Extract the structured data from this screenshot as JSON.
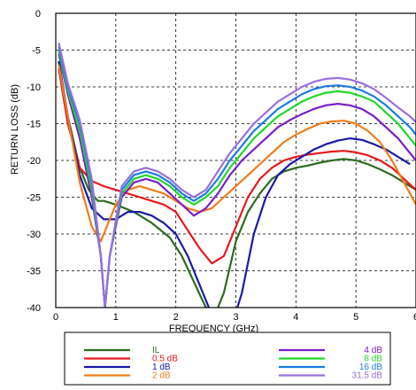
{
  "chart_data": {
    "type": "line",
    "title": "",
    "xlabel": "FREQUENCY (GHz)",
    "ylabel": "RETURN LOSS (dB)",
    "xlim": [
      0,
      6
    ],
    "ylim": [
      -40,
      0
    ],
    "xticks": [
      0,
      1,
      2,
      3,
      4,
      5,
      6
    ],
    "yticks": [
      0,
      -5,
      -10,
      -15,
      -20,
      -25,
      -30,
      -35,
      -40
    ],
    "xtick_labels": [
      "0",
      "1",
      "2",
      "3",
      "4",
      "5",
      "6"
    ],
    "ytick_labels": [
      "0",
      "-5",
      "-10",
      "-15",
      "-20",
      "-25",
      "-30",
      "-35",
      "-40"
    ],
    "grid": true,
    "grid_style": "dashed",
    "legend_position": "below plot",
    "series": [
      {
        "name": "IL",
        "color": "#2e6b1e",
        "x": [
          0.05,
          0.2,
          0.4,
          0.55,
          0.7,
          0.8,
          1.0,
          1.3,
          1.6,
          1.9,
          2.1,
          2.3,
          2.5,
          2.6,
          2.8,
          3.0,
          3.2,
          3.4,
          3.6,
          3.8,
          4.0,
          4.2,
          4.4,
          4.6,
          4.8,
          5.0,
          5.2,
          5.4,
          5.6,
          5.8,
          6.0
        ],
        "y": [
          -6.5,
          -14,
          -21,
          -24,
          -25.5,
          -25.5,
          -26,
          -27,
          -28.5,
          -30.5,
          -33,
          -36.5,
          -40,
          -42,
          -38,
          -31,
          -27,
          -24.5,
          -22.5,
          -21.5,
          -21,
          -20.7,
          -20.3,
          -20,
          -19.8,
          -20,
          -20.5,
          -21.2,
          -22,
          -23,
          -24
        ]
      },
      {
        "name": "0.5 dB",
        "color": "#e8191d",
        "x": [
          0.05,
          0.2,
          0.4,
          0.6,
          0.8,
          1.0,
          1.2,
          1.4,
          1.6,
          1.8,
          2.0,
          2.2,
          2.4,
          2.6,
          2.8,
          3.0,
          3.2,
          3.4,
          3.6,
          3.8,
          4.0,
          4.2,
          4.4,
          4.6,
          4.8,
          5.0,
          5.2,
          5.4,
          5.6,
          5.8,
          6.0
        ],
        "y": [
          -7.5,
          -15,
          -21,
          -22.8,
          -23.5,
          -24,
          -24.5,
          -25,
          -25.5,
          -26,
          -27,
          -29.5,
          -32,
          -34,
          -33,
          -29,
          -25,
          -22.5,
          -21,
          -20,
          -19.5,
          -19.2,
          -19,
          -18.8,
          -18.7,
          -18.9,
          -19.3,
          -20,
          -21,
          -22.5,
          -24
        ]
      },
      {
        "name": "1 dB",
        "color": "#1a1aa8",
        "x": [
          0.05,
          0.2,
          0.4,
          0.6,
          0.8,
          1.0,
          1.2,
          1.4,
          1.6,
          1.8,
          2.0,
          2.2,
          2.4,
          2.6,
          2.8,
          2.95,
          3.1,
          3.3,
          3.5,
          3.7,
          3.9,
          4.1,
          4.3,
          4.5,
          4.7,
          4.9,
          5.1,
          5.3,
          5.5,
          5.7,
          5.9
        ],
        "y": [
          -6.5,
          -14,
          -22,
          -26.5,
          -28,
          -28,
          -27,
          -27,
          -27.5,
          -28.5,
          -30,
          -33,
          -37,
          -41,
          -43,
          -42,
          -38,
          -30,
          -25,
          -22,
          -20.5,
          -19.5,
          -18.5,
          -17.8,
          -17.3,
          -17,
          -17.2,
          -17.8,
          -18.5,
          -19.5,
          -20.5
        ]
      },
      {
        "name": "2 dB",
        "color": "#f07d1a",
        "x": [
          0.05,
          0.2,
          0.4,
          0.6,
          0.75,
          0.85,
          1.0,
          1.2,
          1.4,
          1.6,
          1.8,
          2.0,
          2.2,
          2.4,
          2.6,
          2.8,
          3.0,
          3.2,
          3.4,
          3.6,
          3.8,
          4.0,
          4.2,
          4.4,
          4.6,
          4.8,
          5.0,
          5.2,
          5.4,
          5.6,
          5.8,
          6.0
        ],
        "y": [
          -7,
          -14,
          -23,
          -29,
          -31,
          -29,
          -26,
          -24,
          -23.5,
          -24,
          -24.5,
          -25.5,
          -26.5,
          -27,
          -26.5,
          -25,
          -23.5,
          -22,
          -20.5,
          -19,
          -17.5,
          -16.5,
          -15.7,
          -15,
          -14.7,
          -14.6,
          -15,
          -16,
          -17.5,
          -20,
          -23,
          -26
        ]
      },
      {
        "name": "4 dB",
        "color": "#7a1fc8",
        "x": [
          0.05,
          0.2,
          0.4,
          0.6,
          0.75,
          0.82,
          0.9,
          1.1,
          1.3,
          1.5,
          1.7,
          1.9,
          2.1,
          2.3,
          2.5,
          2.7,
          2.9,
          3.1,
          3.3,
          3.5,
          3.7,
          3.9,
          4.1,
          4.3,
          4.5,
          4.7,
          4.9,
          5.1,
          5.3,
          5.5,
          5.7,
          5.9,
          6.0
        ],
        "y": [
          -5.5,
          -11,
          -17,
          -25,
          -33,
          -40,
          -33,
          -25,
          -23,
          -22.5,
          -23,
          -24.5,
          -26,
          -27.5,
          -26.5,
          -24.5,
          -22,
          -20,
          -18.5,
          -17,
          -15.5,
          -14.5,
          -13.7,
          -13,
          -12.5,
          -12.3,
          -12.5,
          -13,
          -14,
          -15.5,
          -17,
          -19,
          -20
        ]
      },
      {
        "name": "8 dB",
        "color": "#22d62b",
        "x": [
          0.05,
          0.2,
          0.4,
          0.6,
          0.75,
          0.82,
          0.9,
          1.1,
          1.3,
          1.5,
          1.7,
          1.9,
          2.1,
          2.3,
          2.5,
          2.7,
          2.9,
          3.1,
          3.3,
          3.5,
          3.7,
          3.9,
          4.1,
          4.3,
          4.5,
          4.7,
          4.9,
          5.1,
          5.3,
          5.5,
          5.7,
          5.9,
          6.0
        ],
        "y": [
          -5,
          -10.5,
          -16,
          -24,
          -33,
          -40,
          -33,
          -24.5,
          -22.5,
          -22,
          -22.5,
          -23.5,
          -25,
          -26,
          -25,
          -23.5,
          -21,
          -19,
          -17,
          -15.5,
          -14,
          -13,
          -12,
          -11.3,
          -10.8,
          -10.6,
          -10.8,
          -11.3,
          -12,
          -13.5,
          -15,
          -17,
          -18
        ]
      },
      {
        "name": "16 dB",
        "color": "#1a7de0",
        "x": [
          0.05,
          0.2,
          0.4,
          0.6,
          0.75,
          0.82,
          0.9,
          1.1,
          1.3,
          1.5,
          1.7,
          1.9,
          2.1,
          2.3,
          2.5,
          2.7,
          2.9,
          3.1,
          3.3,
          3.5,
          3.7,
          3.9,
          4.1,
          4.3,
          4.5,
          4.7,
          4.9,
          5.1,
          5.3,
          5.5,
          5.7,
          5.9,
          6.0
        ],
        "y": [
          -4.5,
          -10,
          -15,
          -23,
          -33,
          -40,
          -33,
          -24,
          -22,
          -21.5,
          -22,
          -23,
          -24.5,
          -25.5,
          -24.5,
          -22.5,
          -20,
          -18,
          -16,
          -14.5,
          -13,
          -12,
          -11,
          -10.3,
          -9.9,
          -9.8,
          -10,
          -10.5,
          -11.3,
          -12.5,
          -14,
          -15.5,
          -16.5
        ]
      },
      {
        "name": "31.5 dB",
        "color": "#9a6fdc",
        "x": [
          0.05,
          0.2,
          0.4,
          0.6,
          0.75,
          0.82,
          0.9,
          1.1,
          1.3,
          1.5,
          1.7,
          1.9,
          2.1,
          2.3,
          2.5,
          2.7,
          2.9,
          3.1,
          3.3,
          3.5,
          3.7,
          3.9,
          4.1,
          4.3,
          4.5,
          4.7,
          4.9,
          5.1,
          5.3,
          5.5,
          5.7,
          5.9,
          6.0
        ],
        "y": [
          -4,
          -9.5,
          -14.5,
          -22.5,
          -33,
          -40,
          -33,
          -23.5,
          -21.5,
          -21,
          -21.5,
          -22.5,
          -24,
          -25,
          -24,
          -21.5,
          -19,
          -17,
          -15,
          -13.5,
          -12,
          -11,
          -10,
          -9.3,
          -8.9,
          -8.8,
          -9,
          -9.5,
          -10.3,
          -11.5,
          -12.8,
          -14,
          -14.8
        ]
      }
    ]
  }
}
